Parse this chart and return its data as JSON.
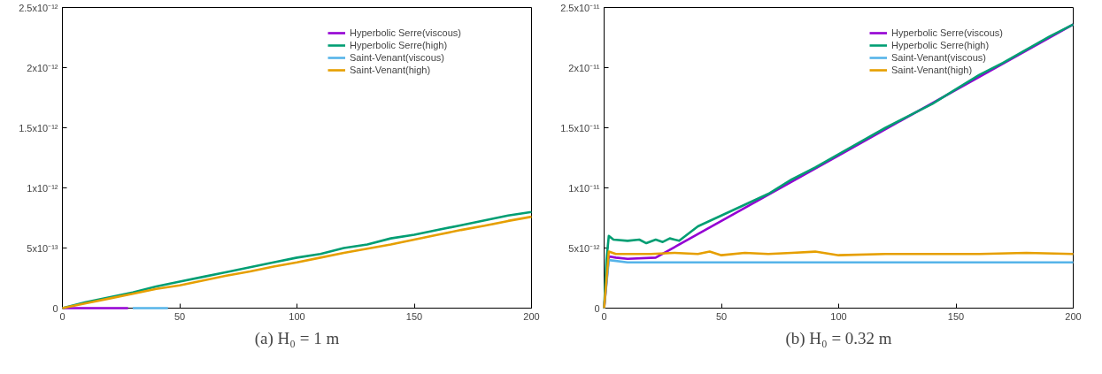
{
  "chart_data": [
    {
      "type": "line",
      "title": "(a) H₀ = 1 m",
      "xlim": [
        0,
        200
      ],
      "xticks": [
        0,
        50,
        100,
        150,
        200
      ],
      "ylim": [
        0,
        2.5e-12
      ],
      "yticks": [
        {
          "value": 0,
          "label": "0"
        },
        {
          "value": 5e-13,
          "label": "5x10⁻¹³"
        },
        {
          "value": 1e-12,
          "label": "1x10⁻¹²"
        },
        {
          "value": 1.5e-12,
          "label": "1.5x10⁻¹²"
        },
        {
          "value": 2e-12,
          "label": "2x10⁻¹²"
        },
        {
          "value": 2.5e-12,
          "label": "2.5x10⁻¹²"
        }
      ],
      "grid": false,
      "legend": "top right",
      "marker": "none",
      "line_style": "solid",
      "series": [
        {
          "name": "Hyperbolic Serre(viscous)",
          "color": "#9400d3",
          "x": [
            0,
            10,
            20,
            28
          ],
          "values": [
            0,
            0,
            0,
            0
          ]
        },
        {
          "name": "Hyperbolic Serre(high)",
          "color": "#009e73",
          "x": [
            0,
            10,
            20,
            30,
            40,
            50,
            60,
            70,
            80,
            90,
            100,
            110,
            120,
            130,
            140,
            150,
            160,
            170,
            180,
            190,
            200
          ],
          "values": [
            0,
            5e-14,
            9e-14,
            1.3e-13,
            1.8e-13,
            2.2e-13,
            2.6e-13,
            3e-13,
            3.4e-13,
            3.8e-13,
            4.2e-13,
            4.5e-13,
            5e-13,
            5.3e-13,
            5.8e-13,
            6.1e-13,
            6.5e-13,
            6.9e-13,
            7.3e-13,
            7.7e-13,
            8e-13
          ]
        },
        {
          "name": "Saint-Venant(viscous)",
          "color": "#56b4e9",
          "x": [
            30,
            38,
            45
          ],
          "values": [
            0,
            0,
            0
          ]
        },
        {
          "name": "Saint-Venant(high)",
          "color": "#e69f00",
          "x": [
            0,
            10,
            20,
            30,
            40,
            50,
            60,
            70,
            80,
            90,
            100,
            110,
            120,
            130,
            140,
            150,
            160,
            170,
            180,
            190,
            200
          ],
          "values": [
            0,
            4e-14,
            8e-14,
            1.2e-13,
            1.6e-13,
            1.9e-13,
            2.3e-13,
            2.7e-13,
            3.05e-13,
            3.45e-13,
            3.8e-13,
            4.2e-13,
            4.6e-13,
            4.95e-13,
            5.3e-13,
            5.7e-13,
            6.1e-13,
            6.5e-13,
            6.85e-13,
            7.25e-13,
            7.6e-13
          ]
        }
      ]
    },
    {
      "type": "line",
      "title": "(b) H₀ = 0.32 m",
      "xlim": [
        0,
        200
      ],
      "xticks": [
        0,
        50,
        100,
        150,
        200
      ],
      "ylim": [
        0,
        2.5e-11
      ],
      "yticks": [
        {
          "value": 0,
          "label": "0"
        },
        {
          "value": 5e-12,
          "label": "5x10⁻¹²"
        },
        {
          "value": 1e-11,
          "label": "1x10⁻¹¹"
        },
        {
          "value": 1.5e-11,
          "label": "1.5x10⁻¹¹"
        },
        {
          "value": 2e-11,
          "label": "2x10⁻¹¹"
        },
        {
          "value": 2.5e-11,
          "label": "2.5x10⁻¹¹"
        }
      ],
      "grid": false,
      "legend": "top right",
      "marker": "none",
      "line_style": "solid",
      "series": [
        {
          "name": "Hyperbolic Serre(viscous)",
          "color": "#9400d3",
          "x": [
            0,
            2,
            5,
            10,
            22,
            100,
            200
          ],
          "values": [
            0,
            4.3e-12,
            4.2e-12,
            4.1e-12,
            4.2e-12,
            1.27e-11,
            2.36e-11
          ]
        },
        {
          "name": "Hyperbolic Serre(high)",
          "color": "#009e73",
          "x": [
            0,
            1,
            2,
            4,
            10,
            15,
            18,
            22,
            25,
            28,
            32,
            40,
            50,
            60,
            70,
            80,
            90,
            100,
            110,
            120,
            130,
            140,
            150,
            160,
            170,
            180,
            190,
            200
          ],
          "values": [
            0,
            4e-12,
            6e-12,
            5.7e-12,
            5.6e-12,
            5.7e-12,
            5.4e-12,
            5.7e-12,
            5.5e-12,
            5.8e-12,
            5.6e-12,
            6.8e-12,
            7.7e-12,
            8.6e-12,
            9.5e-12,
            1.07e-11,
            1.17e-11,
            1.28e-11,
            1.39e-11,
            1.5e-11,
            1.6e-11,
            1.7e-11,
            1.82e-11,
            1.94e-11,
            2.04e-11,
            2.15e-11,
            2.26e-11,
            2.36e-11
          ]
        },
        {
          "name": "Saint-Venant(viscous)",
          "color": "#56b4e9",
          "x": [
            0,
            2,
            10,
            200
          ],
          "values": [
            0,
            4e-12,
            3.8e-12,
            3.8e-12
          ]
        },
        {
          "name": "Saint-Venant(high)",
          "color": "#e69f00",
          "x": [
            0,
            2,
            5,
            10,
            20,
            30,
            40,
            45,
            50,
            60,
            70,
            80,
            90,
            100,
            120,
            140,
            160,
            180,
            200
          ],
          "values": [
            0,
            4.7e-12,
            4.5e-12,
            4.5e-12,
            4.5e-12,
            4.6e-12,
            4.5e-12,
            4.7e-12,
            4.4e-12,
            4.6e-12,
            4.5e-12,
            4.6e-12,
            4.7e-12,
            4.4e-12,
            4.5e-12,
            4.5e-12,
            4.5e-12,
            4.6e-12,
            4.5e-12
          ]
        }
      ]
    }
  ]
}
